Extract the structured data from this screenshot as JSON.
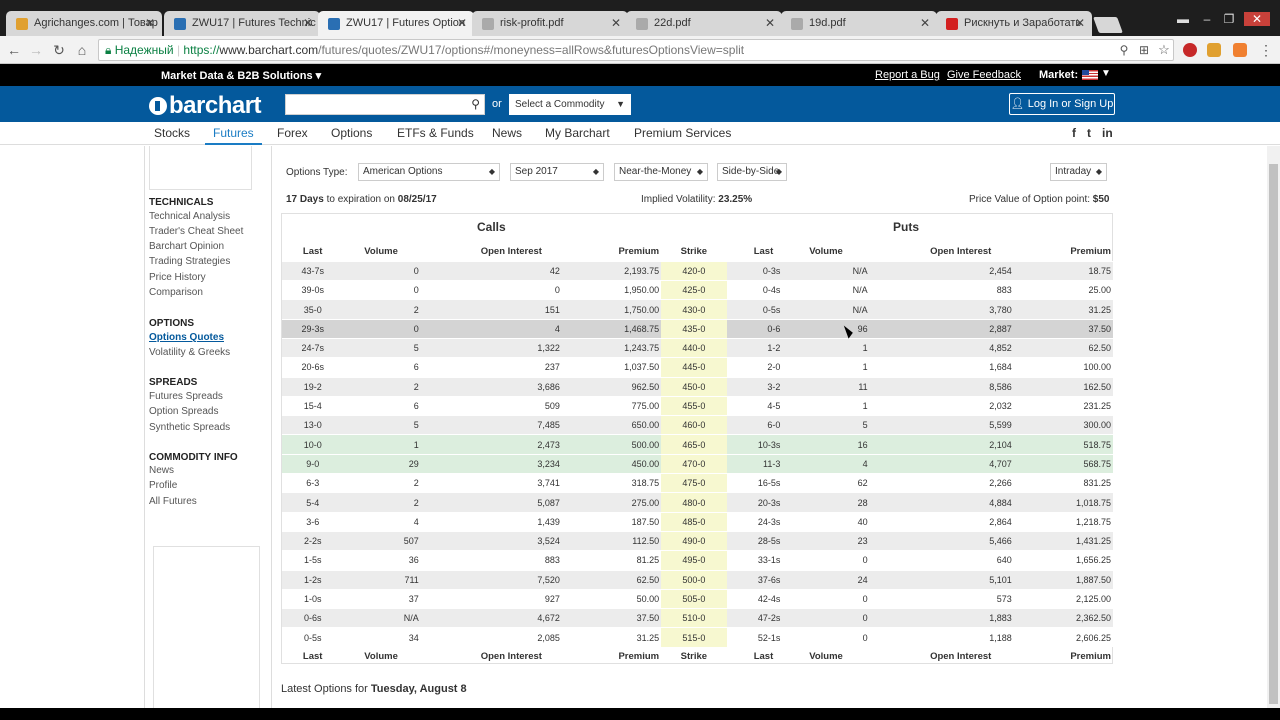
{
  "browser": {
    "tabs": [
      {
        "title": "Agrichanges.com | Товар",
        "color": "#e0a030"
      },
      {
        "title": "ZWU17 | Futures Technic",
        "color": "#2a6fb3"
      },
      {
        "title": "ZWU17 | Futures Option",
        "color": "#2a6fb3"
      },
      {
        "title": "risk-profit.pdf",
        "color": "#aaaaaa"
      },
      {
        "title": "22d.pdf",
        "color": "#aaaaaa"
      },
      {
        "title": "19d.pdf",
        "color": "#aaaaaa"
      },
      {
        "title": "Рискнуть и Заработать",
        "color": "#d32020"
      }
    ],
    "secure_label": "Надежный",
    "url_scheme": "https://",
    "url_main": "www.barchart.com",
    "url_rest": "/futures/quotes/ZWU17/options#/moneyness=allRows&futuresOptionsView=split"
  },
  "site": {
    "topbar_title": "Market Data & B2B Solutions ▾",
    "report_bug": "Report a Bug",
    "feedback": "Give Feedback",
    "market_label": "Market:",
    "logo": "barchart",
    "or": "or",
    "commodity_select": "Select a Commodity",
    "login": "Log In or Sign Up",
    "nav": [
      "Stocks",
      "Futures",
      "Forex",
      "Options",
      "ETFs & Funds",
      "News",
      "My Barchart",
      "Premium Services"
    ],
    "social": [
      "f",
      "t",
      "in"
    ]
  },
  "sidebar": {
    "technicals_title": "TECHNICALS",
    "technicals": [
      "Technical Analysis",
      "Trader's Cheat Sheet",
      "Barchart Opinion",
      "Trading Strategies",
      "Price History",
      "Comparison"
    ],
    "options_title": "OPTIONS",
    "options": [
      "Options Quotes",
      "Volatility & Greeks"
    ],
    "spreads_title": "SPREADS",
    "spreads": [
      "Futures Spreads",
      "Option Spreads",
      "Synthetic Spreads"
    ],
    "commodity_title": "COMMODITY INFO",
    "commodity": [
      "News",
      "Profile",
      "All Futures"
    ]
  },
  "controls": {
    "options_type_label": "Options Type:",
    "options_type": "American Options",
    "expiry": "Sep 2017",
    "moneyness": "Near-the-Money",
    "view": "Side-by-Side",
    "interval": "Intraday"
  },
  "info": {
    "days": "17 Days",
    "expiration_text": "to expiration on",
    "expiration_date": "08/25/17",
    "iv_label": "Implied Volatility:",
    "iv_value": "23.25%",
    "pv_label": "Price Value of Option point:",
    "pv_value": "$50"
  },
  "table": {
    "calls_title": "Calls",
    "puts_title": "Puts",
    "headers": [
      "Last",
      "Volume",
      "Open Interest",
      "Premium",
      "Strike",
      "Last",
      "Volume",
      "Open Interest",
      "Premium"
    ],
    "rows": [
      [
        "43-7s",
        "0",
        "42",
        "2,193.75",
        "420-0",
        "0-3s",
        "N/A",
        "2,454",
        "18.75"
      ],
      [
        "39-0s",
        "0",
        "0",
        "1,950.00",
        "425-0",
        "0-4s",
        "N/A",
        "883",
        "25.00"
      ],
      [
        "35-0",
        "2",
        "151",
        "1,750.00",
        "430-0",
        "0-5s",
        "N/A",
        "3,780",
        "31.25"
      ],
      [
        "29-3s",
        "0",
        "4",
        "1,468.75",
        "435-0",
        "0-6",
        "96",
        "2,887",
        "37.50"
      ],
      [
        "24-7s",
        "5",
        "1,322",
        "1,243.75",
        "440-0",
        "1-2",
        "1",
        "4,852",
        "62.50"
      ],
      [
        "20-6s",
        "6",
        "237",
        "1,037.50",
        "445-0",
        "2-0",
        "1",
        "1,684",
        "100.00"
      ],
      [
        "19-2",
        "2",
        "3,686",
        "962.50",
        "450-0",
        "3-2",
        "11",
        "8,586",
        "162.50"
      ],
      [
        "15-4",
        "6",
        "509",
        "775.00",
        "455-0",
        "4-5",
        "1",
        "2,032",
        "231.25"
      ],
      [
        "13-0",
        "5",
        "7,485",
        "650.00",
        "460-0",
        "6-0",
        "5",
        "5,599",
        "300.00"
      ],
      [
        "10-0",
        "1",
        "2,473",
        "500.00",
        "465-0",
        "10-3s",
        "16",
        "2,104",
        "518.75"
      ],
      [
        "9-0",
        "29",
        "3,234",
        "450.00",
        "470-0",
        "11-3",
        "4",
        "4,707",
        "568.75"
      ],
      [
        "6-3",
        "2",
        "3,741",
        "318.75",
        "475-0",
        "16-5s",
        "62",
        "2,266",
        "831.25"
      ],
      [
        "5-4",
        "2",
        "5,087",
        "275.00",
        "480-0",
        "20-3s",
        "28",
        "4,884",
        "1,018.75"
      ],
      [
        "3-6",
        "4",
        "1,439",
        "187.50",
        "485-0",
        "24-3s",
        "40",
        "2,864",
        "1,218.75"
      ],
      [
        "2-2s",
        "507",
        "3,524",
        "112.50",
        "490-0",
        "28-5s",
        "23",
        "5,466",
        "1,431.25"
      ],
      [
        "1-5s",
        "36",
        "883",
        "81.25",
        "495-0",
        "33-1s",
        "0",
        "640",
        "1,656.25"
      ],
      [
        "1-2s",
        "711",
        "7,520",
        "62.50",
        "500-0",
        "37-6s",
        "24",
        "5,101",
        "1,887.50"
      ],
      [
        "1-0s",
        "37",
        "927",
        "50.00",
        "505-0",
        "42-4s",
        "0",
        "573",
        "2,125.00"
      ],
      [
        "0-6s",
        "N/A",
        "4,672",
        "37.50",
        "510-0",
        "47-2s",
        "0",
        "1,883",
        "2,362.50"
      ],
      [
        "0-5s",
        "34",
        "2,085",
        "31.25",
        "515-0",
        "52-1s",
        "0",
        "1,188",
        "2,606.25"
      ]
    ],
    "highlight_rows": [
      9,
      10
    ],
    "selected_row": 3
  },
  "latest": {
    "label": "Latest Options for",
    "date": "Tuesday, August 8"
  }
}
